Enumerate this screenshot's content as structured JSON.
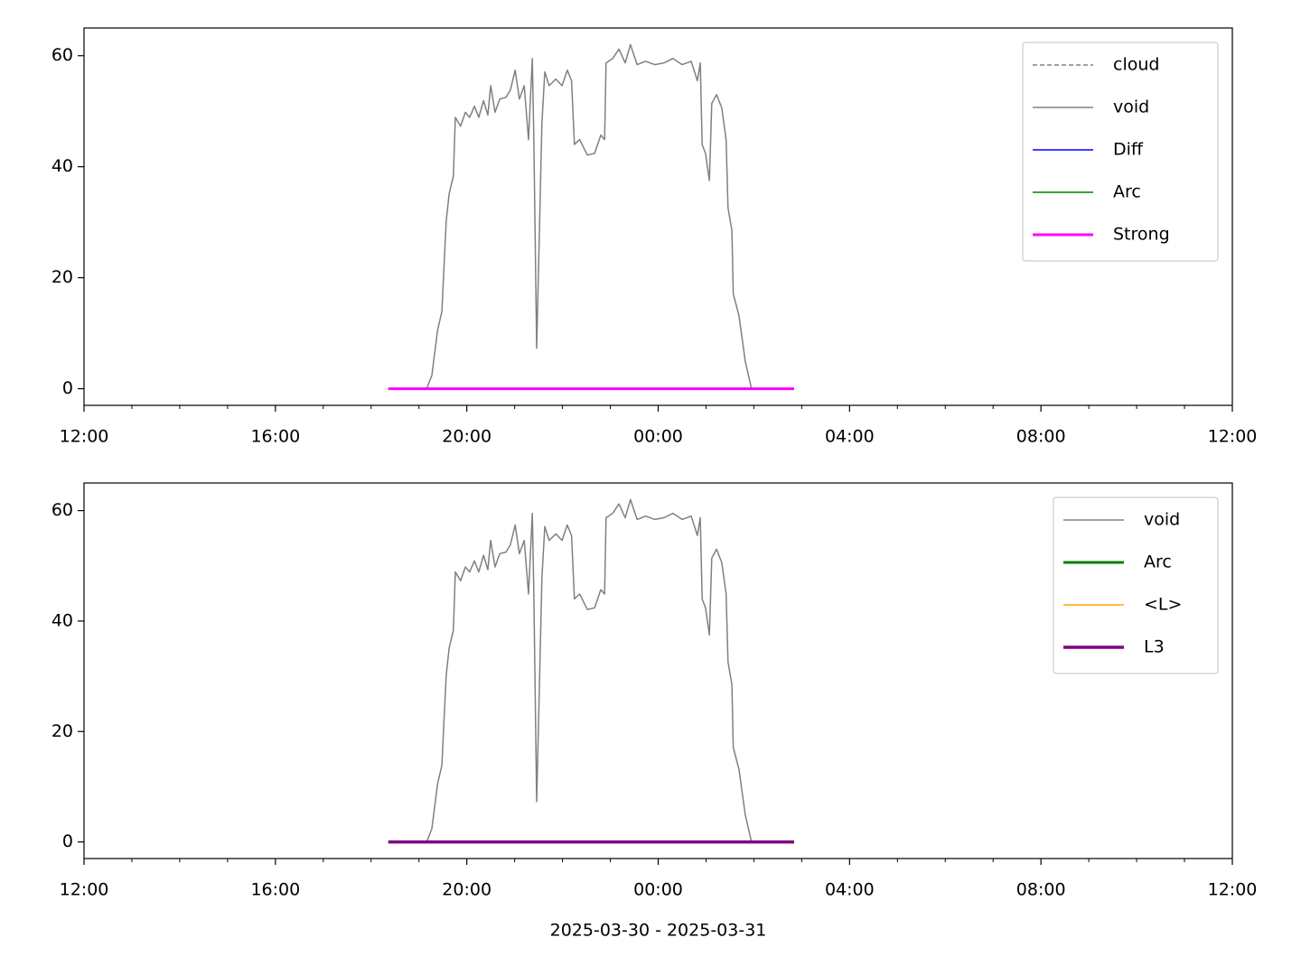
{
  "chart_data": [
    {
      "type": "line",
      "xlim": [
        0,
        24
      ],
      "xticks": [
        {
          "value": 0,
          "label": "12:00"
        },
        {
          "value": 4,
          "label": "16:00"
        },
        {
          "value": 8,
          "label": "20:00"
        },
        {
          "value": 12,
          "label": "00:00"
        },
        {
          "value": 16,
          "label": "04:00"
        },
        {
          "value": 20,
          "label": "08:00"
        },
        {
          "value": 24,
          "label": "12:00"
        }
      ],
      "xminorticks": [
        1,
        2,
        3,
        5,
        6,
        7,
        9,
        10,
        11,
        13,
        14,
        15,
        17,
        18,
        19,
        21,
        22,
        23
      ],
      "ylim": [
        -3,
        65
      ],
      "yticks": [
        0,
        20,
        40,
        60
      ],
      "legend": "upper right",
      "series": [
        {
          "name": "cloud",
          "color": "#808080",
          "width": 1.5,
          "linestyle": "dashed",
          "x": [],
          "values": []
        },
        {
          "name": "void",
          "color": "#808080",
          "width": 1.5,
          "x": [
            6.36,
            7.16,
            7.27,
            7.39,
            7.48,
            7.52,
            7.57,
            7.63,
            7.72,
            7.76,
            7.87,
            7.97,
            8.06,
            8.16,
            8.25,
            8.35,
            8.44,
            8.5,
            8.59,
            8.69,
            8.82,
            8.91,
            9.01,
            9.1,
            9.2,
            9.29,
            9.37,
            9.4,
            9.46,
            9.52,
            9.57,
            9.63,
            9.72,
            9.86,
            9.99,
            10.1,
            10.19,
            10.25,
            10.36,
            10.52,
            10.67,
            10.8,
            10.88,
            10.91,
            11.05,
            11.18,
            11.31,
            11.42,
            11.56,
            11.74,
            11.93,
            12.12,
            12.31,
            12.5,
            12.69,
            12.82,
            12.88,
            12.92,
            12.99,
            13.07,
            13.12,
            13.22,
            13.33,
            13.42,
            13.46,
            13.54,
            13.57,
            13.69,
            13.82,
            13.95,
            14.84
          ],
          "values": [
            0,
            0,
            2.4,
            10.6,
            13.9,
            21.2,
            30.2,
            35.1,
            38.3,
            48.9,
            47.3,
            49.8,
            48.9,
            50.9,
            48.9,
            51.9,
            49.3,
            54.6,
            49.8,
            52.2,
            52.5,
            53.8,
            57.4,
            52.2,
            54.6,
            44.9,
            59.5,
            45.7,
            7.3,
            29.4,
            47.8,
            57.1,
            54.6,
            55.8,
            54.6,
            57.4,
            55.5,
            44.0,
            44.9,
            42.1,
            42.4,
            45.7,
            44.9,
            58.7,
            59.5,
            61.2,
            58.7,
            62.0,
            58.4,
            59.0,
            58.4,
            58.7,
            59.5,
            58.4,
            59.0,
            55.5,
            58.7,
            44.0,
            42.4,
            37.5,
            51.4,
            53.0,
            50.6,
            44.9,
            32.6,
            28.5,
            17.1,
            13.1,
            4.9,
            0,
            0
          ]
        },
        {
          "name": "Diff",
          "color": "#0000ff",
          "width": 1.5,
          "x": [
            6.36,
            14.84
          ],
          "values": [
            0,
            0
          ]
        },
        {
          "name": "Arc",
          "color": "#008000",
          "width": 1.5,
          "x": [
            6.36,
            14.84
          ],
          "values": [
            0,
            0
          ]
        },
        {
          "name": "Strong",
          "color": "#ff00ff",
          "width": 3,
          "x": [
            6.36,
            14.84
          ],
          "values": [
            0,
            0
          ]
        }
      ]
    },
    {
      "type": "line",
      "xlabel": "2025-03-30 - 2025-03-31",
      "xlim": [
        0,
        24
      ],
      "xticks": [
        {
          "value": 0,
          "label": "12:00"
        },
        {
          "value": 4,
          "label": "16:00"
        },
        {
          "value": 8,
          "label": "20:00"
        },
        {
          "value": 12,
          "label": "00:00"
        },
        {
          "value": 16,
          "label": "04:00"
        },
        {
          "value": 20,
          "label": "08:00"
        },
        {
          "value": 24,
          "label": "12:00"
        }
      ],
      "xminorticks": [
        1,
        2,
        3,
        5,
        6,
        7,
        9,
        10,
        11,
        13,
        14,
        15,
        17,
        18,
        19,
        21,
        22,
        23
      ],
      "ylim": [
        -3,
        65
      ],
      "yticks": [
        0,
        20,
        40,
        60
      ],
      "legend": "upper right",
      "series": [
        {
          "name": "void",
          "color": "#808080",
          "width": 1.5,
          "x": [
            6.36,
            7.16,
            7.27,
            7.39,
            7.48,
            7.52,
            7.57,
            7.63,
            7.72,
            7.76,
            7.87,
            7.97,
            8.06,
            8.16,
            8.25,
            8.35,
            8.44,
            8.5,
            8.59,
            8.69,
            8.82,
            8.91,
            9.01,
            9.1,
            9.2,
            9.29,
            9.37,
            9.4,
            9.46,
            9.52,
            9.57,
            9.63,
            9.72,
            9.86,
            9.99,
            10.1,
            10.19,
            10.25,
            10.36,
            10.52,
            10.67,
            10.8,
            10.88,
            10.91,
            11.05,
            11.18,
            11.31,
            11.42,
            11.56,
            11.74,
            11.93,
            12.12,
            12.31,
            12.5,
            12.69,
            12.82,
            12.88,
            12.92,
            12.99,
            13.07,
            13.12,
            13.22,
            13.33,
            13.42,
            13.46,
            13.54,
            13.57,
            13.69,
            13.82,
            13.95,
            14.84
          ],
          "values": [
            0,
            0,
            2.4,
            10.6,
            13.9,
            21.2,
            30.2,
            35.1,
            38.3,
            48.9,
            47.3,
            49.8,
            48.9,
            50.9,
            48.9,
            51.9,
            49.3,
            54.6,
            49.8,
            52.2,
            52.5,
            53.8,
            57.4,
            52.2,
            54.6,
            44.9,
            59.5,
            45.7,
            7.3,
            29.4,
            47.8,
            57.1,
            54.6,
            55.8,
            54.6,
            57.4,
            55.5,
            44.0,
            44.9,
            42.1,
            42.4,
            45.7,
            44.9,
            58.7,
            59.5,
            61.2,
            58.7,
            62.0,
            58.4,
            59.0,
            58.4,
            58.7,
            59.5,
            58.4,
            59.0,
            55.5,
            58.7,
            44.0,
            42.4,
            37.5,
            51.4,
            53.0,
            50.6,
            44.9,
            32.6,
            28.5,
            17.1,
            13.1,
            4.9,
            0,
            0
          ]
        },
        {
          "name": "Arc",
          "color": "#008000",
          "width": 3,
          "x": [
            6.36,
            14.84
          ],
          "values": [
            0,
            0
          ]
        },
        {
          "name": "<L>",
          "color": "#ffa500",
          "width": 1.5,
          "x": [
            6.36,
            14.84
          ],
          "values": [
            0,
            0
          ]
        },
        {
          "name": "L3",
          "color": "#800080",
          "width": 3.5,
          "x": [
            6.36,
            14.84
          ],
          "values": [
            0,
            0
          ]
        }
      ]
    }
  ]
}
